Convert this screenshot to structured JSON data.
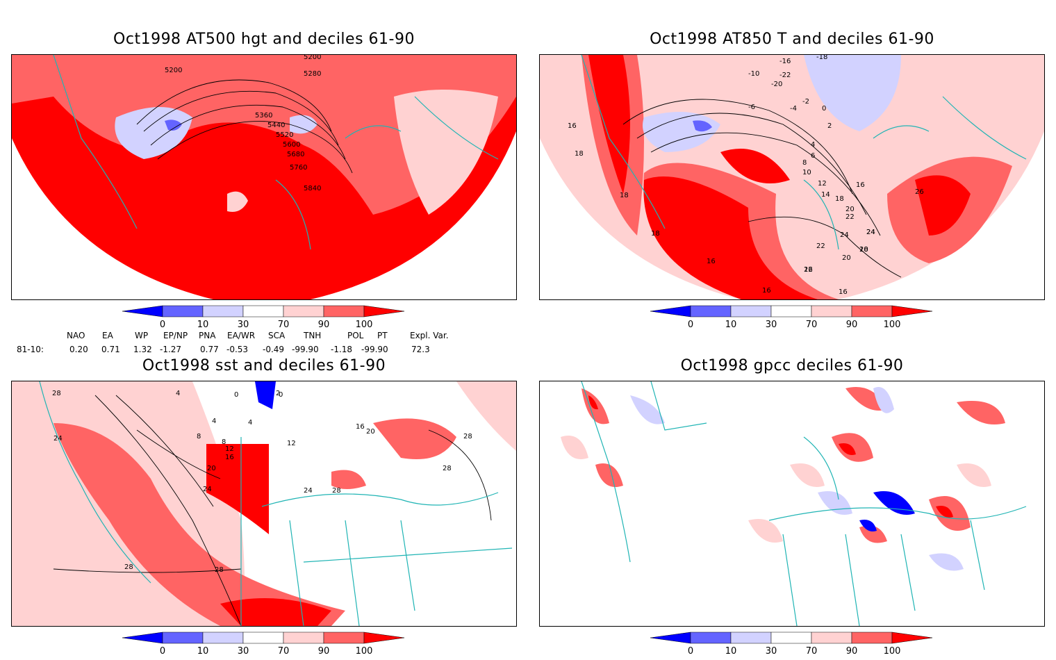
{
  "panels": [
    {
      "title": "Oct1998 AT500 hgt and deciles 61-90",
      "contour_labels": [
        "5200",
        "5200",
        "5280",
        "5360",
        "5440",
        "5520",
        "5600",
        "5680",
        "5760",
        "5840"
      ]
    },
    {
      "title": "Oct1998 AT850 T and deciles 61-90",
      "contour_labels": [
        "-16",
        "-18",
        "-10",
        "-22",
        "-20",
        "-6",
        "-4",
        "-2",
        "0",
        "2",
        "4",
        "6",
        "8",
        "10",
        "12",
        "14",
        "16",
        "18",
        "20",
        "22",
        "24",
        "26",
        "16",
        "18",
        "18",
        "18",
        "16",
        "16",
        "16",
        "18",
        "20",
        "22",
        "24",
        "24",
        "22",
        "20",
        "16"
      ]
    },
    {
      "title": "Oct1998 sst and deciles 61-90",
      "contour_labels": [
        "28",
        "24",
        "4",
        "0",
        "0",
        "4",
        "4",
        "8",
        "8",
        "12",
        "16",
        "20",
        "24",
        "2",
        "12",
        "16",
        "20",
        "24",
        "28",
        "28",
        "28",
        "28",
        "28"
      ]
    },
    {
      "title": "Oct1998 gpcc deciles 61-90",
      "contour_labels": []
    }
  ],
  "colorbar": {
    "ticks": [
      "0",
      "10",
      "30",
      "70",
      "90",
      "100"
    ],
    "colors": [
      "#0000ff",
      "#6464ff",
      "#d2d2ff",
      "#ffffff",
      "#ffd2d2",
      "#ff6464",
      "#ff0000"
    ]
  },
  "indices": {
    "headers": [
      "NAO",
      "EA",
      "WP",
      "EP/NP",
      "PNA",
      "EA/WR",
      "SCA",
      "TNH",
      "POL",
      "PT",
      "Expl. Var."
    ],
    "row_label": "81-10:",
    "values": [
      "0.20",
      "0.71",
      "1.32",
      "-1.27",
      "0.77",
      "-0.53",
      "-0.49",
      "-99.90",
      "-1.18",
      "-99.90",
      "72.3"
    ]
  },
  "colors": {
    "coast": "#1fb4b4",
    "strong_red": "#ff0000",
    "mid_red": "#ff6464",
    "light_red": "#ffd2d2",
    "light_blue": "#d2d2ff",
    "mid_blue": "#6464ff",
    "strong_blue": "#0000ff"
  }
}
